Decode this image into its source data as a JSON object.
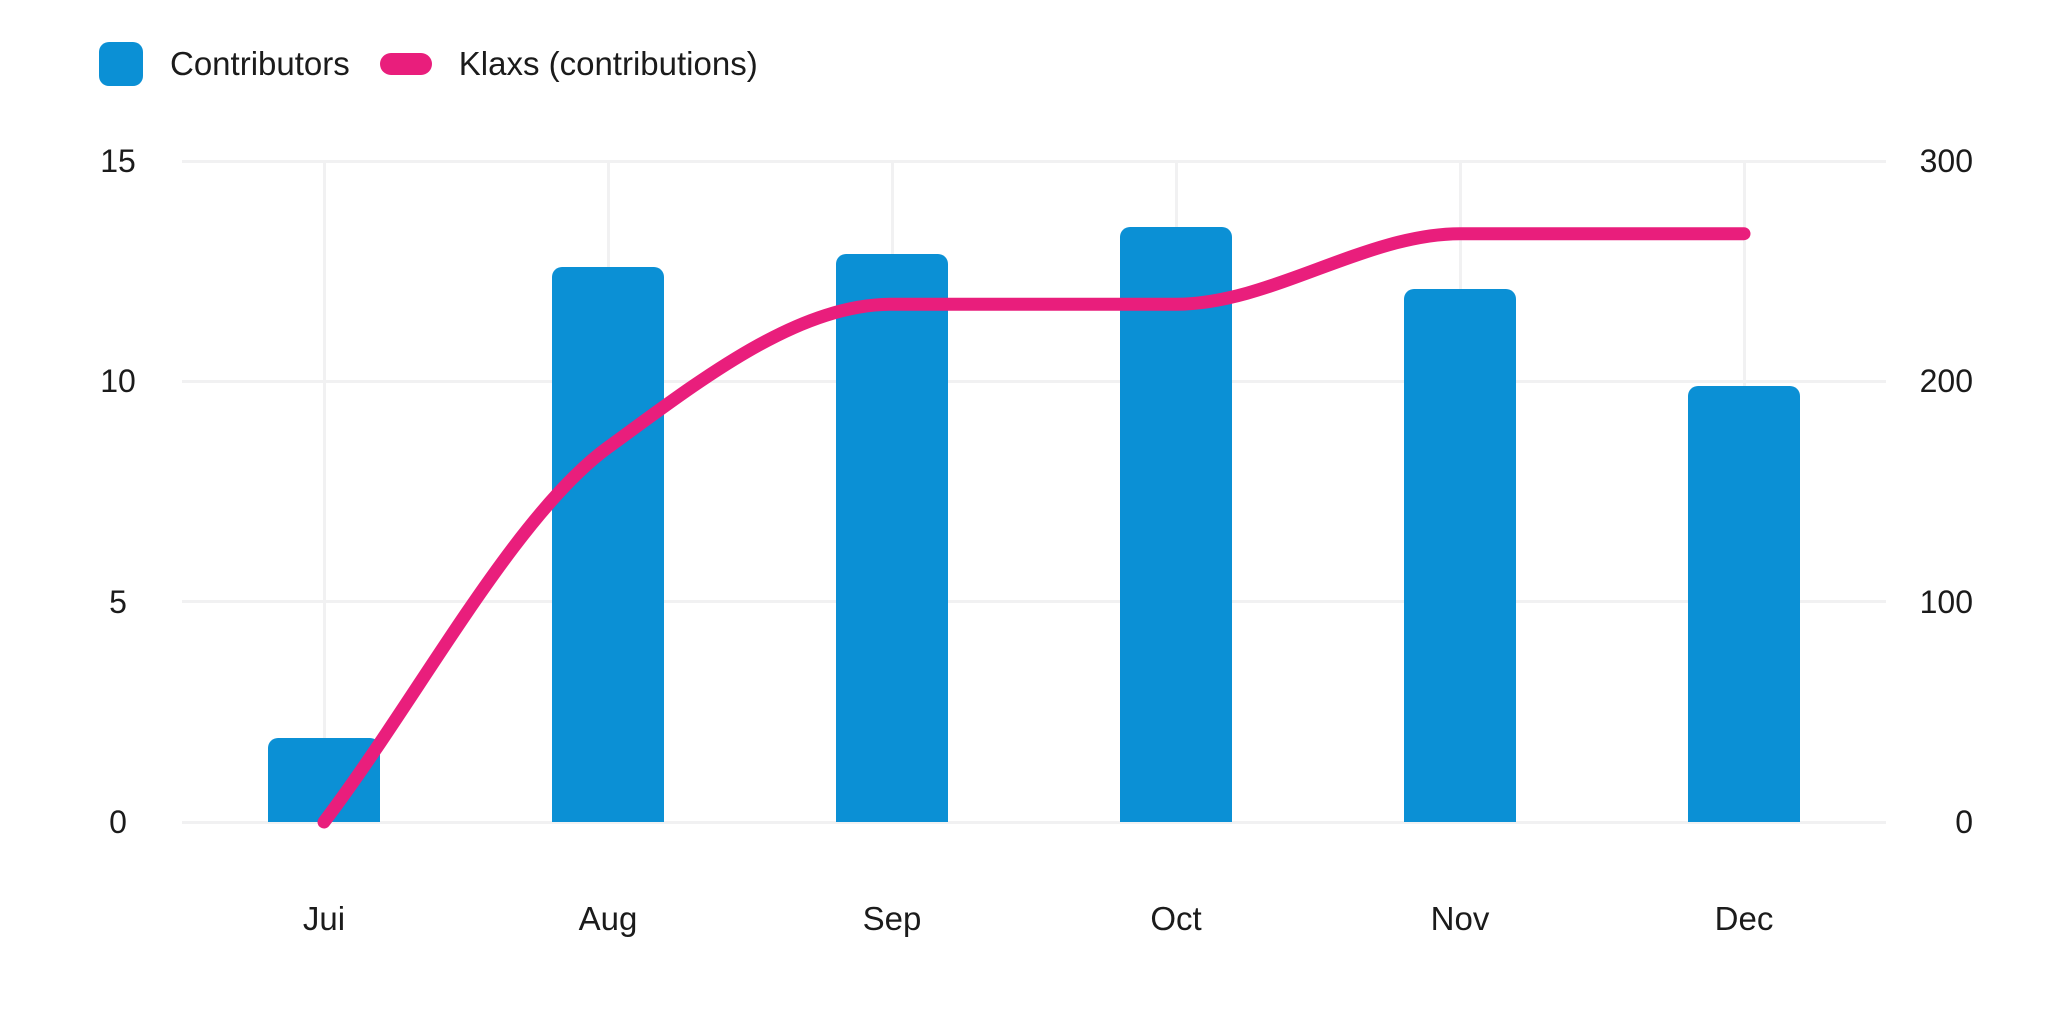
{
  "legend": {
    "items": [
      {
        "label": "Contributors",
        "color": "#0B90D5",
        "shape": "rounded-square"
      },
      {
        "label": "Klaxs (contributions)",
        "color": "#E91E7C",
        "shape": "pill"
      }
    ]
  },
  "chart_data": {
    "type": "combo",
    "title": "",
    "categories": [
      "Jui",
      "Aug",
      "Sep",
      "Oct",
      "Nov",
      "Dec"
    ],
    "series": [
      {
        "name": "Contributors",
        "type": "bar",
        "axis": "left",
        "color": "#0B90D5",
        "values": [
          1.9,
          12.6,
          12.9,
          13.5,
          12.1,
          9.9
        ]
      },
      {
        "name": "Klaxs (contributions)",
        "type": "line",
        "axis": "right",
        "color": "#E91E7C",
        "interpolation": "monotone",
        "values": [
          0,
          170,
          235,
          235,
          267,
          267
        ]
      }
    ],
    "left_axis": {
      "ticks": [
        0,
        5,
        10,
        15
      ],
      "range": [
        0,
        15
      ]
    },
    "right_axis": {
      "ticks": [
        0,
        100,
        200,
        300
      ],
      "range": [
        0,
        300
      ]
    },
    "grid": true,
    "legend_position": "top-left"
  },
  "colors": {
    "background": "#FFFFFF",
    "grid": "#F1F1F2",
    "text": "#1B1B1B"
  }
}
